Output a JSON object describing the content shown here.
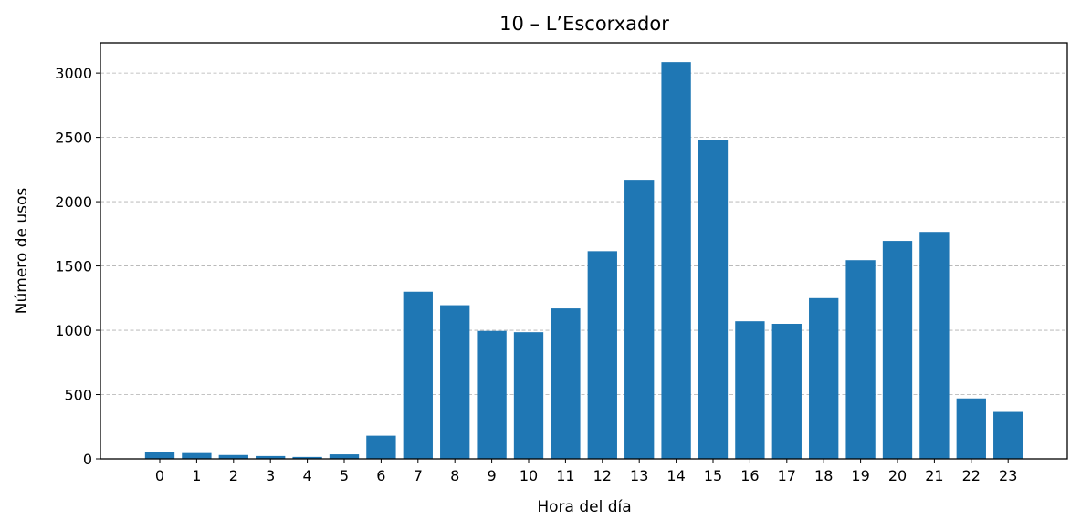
{
  "chart_data": {
    "type": "bar",
    "title": "10 – L’Escorxador",
    "xlabel": "Hora del día",
    "ylabel": "Número de usos",
    "categories": [
      "0",
      "1",
      "2",
      "3",
      "4",
      "5",
      "6",
      "7",
      "8",
      "9",
      "10",
      "11",
      "12",
      "13",
      "14",
      "15",
      "16",
      "17",
      "18",
      "19",
      "20",
      "21",
      "22",
      "23"
    ],
    "values": [
      55,
      45,
      30,
      22,
      15,
      35,
      180,
      1300,
      1195,
      995,
      985,
      1170,
      1615,
      2170,
      3085,
      2480,
      1070,
      1050,
      1250,
      1545,
      1695,
      1765,
      470,
      365
    ],
    "yticks": [
      0,
      500,
      1000,
      1500,
      2000,
      2500,
      3000
    ],
    "ylim": [
      0,
      3235
    ],
    "grid": "y-major-dashed",
    "bar_color": "#1f77b4"
  }
}
